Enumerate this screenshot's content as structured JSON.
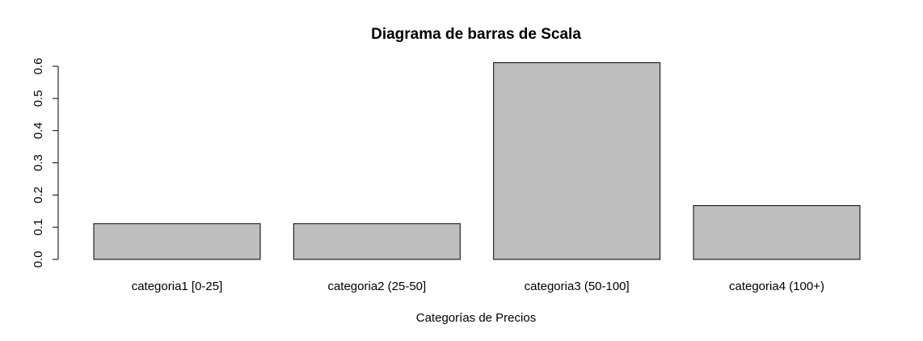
{
  "chart_data": {
    "type": "bar",
    "title": "Diagrama de barras de Scala",
    "xlabel": "Categorías de Precios",
    "ylabel": "",
    "categories": [
      "categoria1 [0-25]",
      "categoria2 (25-50]",
      "categoria3 (50-100]",
      "categoria4 (100+)"
    ],
    "values": [
      0.111,
      0.111,
      0.611,
      0.167
    ],
    "ylim": [
      0,
      0.6
    ],
    "yticks": [
      "0.0",
      "0.1",
      "0.2",
      "0.3",
      "0.4",
      "0.5",
      "0.6"
    ],
    "grid": false,
    "bar_color": "#bebebe",
    "border_color": "#000000"
  }
}
